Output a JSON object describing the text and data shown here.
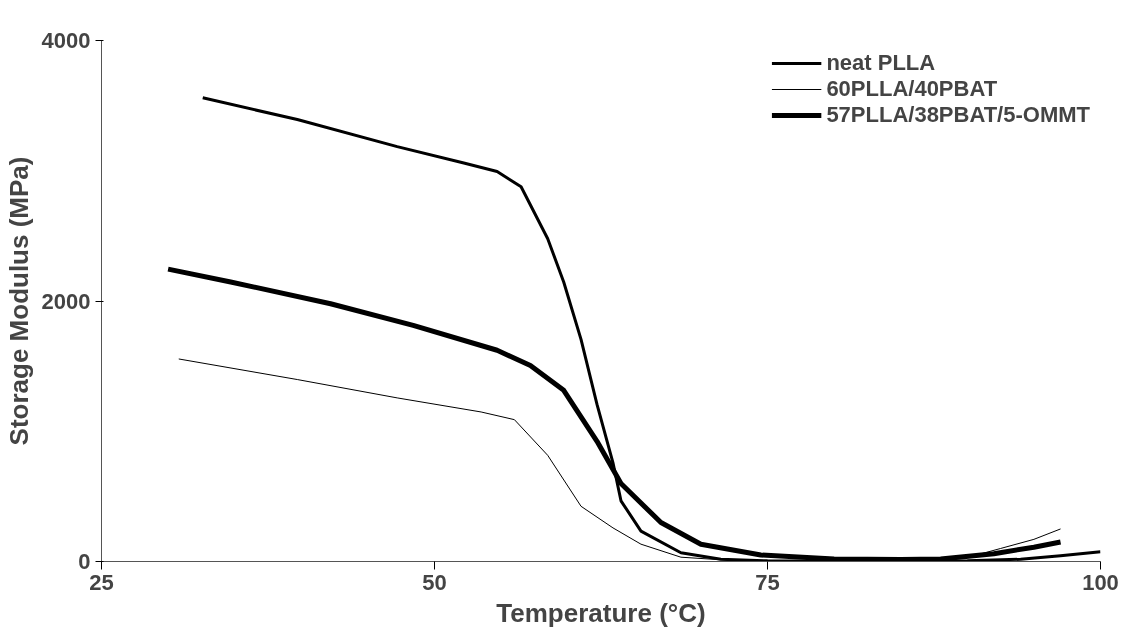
{
  "chart_data": {
    "type": "line",
    "xlabel": "Temperature (°C)",
    "ylabel": "Storage Modulus (MPa)",
    "xlim": [
      25,
      100
    ],
    "ylim": [
      0,
      4000
    ],
    "xticks": [
      25,
      50,
      75,
      100
    ],
    "yticks": [
      0,
      2000,
      4000
    ],
    "grid": false,
    "legend": "top right",
    "marker": "none",
    "line_style": "solid",
    "series": [
      {
        "name": "neat PLLA",
        "color": "#000000",
        "x": [
          32.6,
          39.7,
          47.2,
          52.2,
          54.7,
          56.5,
          58.5,
          59.7,
          61.0,
          62.2,
          63.4,
          64.0,
          65.5,
          68.5,
          71.5,
          75,
          80,
          85,
          90,
          94,
          97,
          100
        ],
        "values": [
          3560,
          3393,
          3185,
          3060,
          2994,
          2877,
          2478,
          2146,
          1705,
          1206,
          757,
          466,
          233,
          67,
          17,
          5,
          3,
          3,
          5,
          17,
          45,
          75
        ]
      },
      {
        "name": "60PLLA/40PBAT",
        "color": "#000000",
        "x": [
          30.8,
          39.7,
          47.2,
          53.5,
          56.0,
          58.5,
          61.0,
          63.4,
          65.5,
          68.5,
          72,
          75,
          80,
          85,
          90,
          92.5,
          95,
          97.0
        ],
        "values": [
          1555,
          1397,
          1256,
          1148,
          1089,
          815,
          424,
          258,
          133,
          33,
          10,
          5,
          3,
          3,
          30,
          100,
          170,
          250
        ]
      },
      {
        "name": "57PLLA/38PBAT/5-OMMT",
        "color": "#000000",
        "x": [
          30.0,
          34.7,
          42.2,
          48.4,
          54.7,
          57.2,
          59.7,
          62.2,
          64.0,
          67.0,
          70.0,
          74.5,
          80,
          85,
          88,
          92,
          95,
          97.0
        ],
        "values": [
          2245,
          2146,
          1979,
          1813,
          1622,
          1505,
          1314,
          923,
          599,
          299,
          133,
          50,
          20,
          15,
          20,
          60,
          110,
          150
        ]
      }
    ]
  }
}
